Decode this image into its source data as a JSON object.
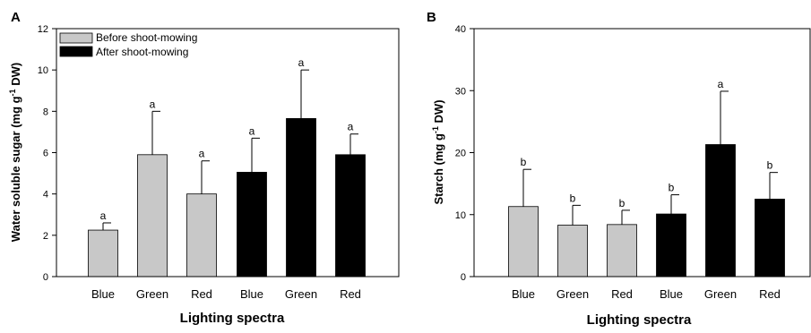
{
  "chart_data": [
    {
      "type": "bar",
      "panel_label": "A",
      "categories": [
        "Blue",
        "Green",
        "Red",
        "Blue",
        "Green",
        "Red"
      ],
      "series": [
        {
          "name": "Before shoot-mowing",
          "color": "#c8c8c8",
          "indices": [
            0,
            1,
            2
          ]
        },
        {
          "name": "After shoot-mowing",
          "color": "#000000",
          "indices": [
            3,
            4,
            5
          ]
        }
      ],
      "values": [
        2.25,
        5.9,
        4.0,
        5.05,
        7.65,
        5.9
      ],
      "errors": [
        0.35,
        2.1,
        1.6,
        1.65,
        2.35,
        1.0
      ],
      "significance": [
        "a",
        "a",
        "a",
        "a",
        "a",
        "a"
      ],
      "ylim": [
        0,
        12
      ],
      "yticks": [
        "0",
        "2",
        "4",
        "6",
        "8",
        "10",
        "12"
      ],
      "xlabel": "Lighting spectra",
      "ylabel": "Water soluble sugar (mg g",
      "ylabel_sup": "-1",
      "ylabel_end": " DW)",
      "legend": "top-left"
    },
    {
      "type": "bar",
      "panel_label": "B",
      "categories": [
        "Blue",
        "Green",
        "Red",
        "Blue",
        "Green",
        "Red"
      ],
      "series": [
        {
          "name": "Before shoot-mowing",
          "color": "#c8c8c8",
          "indices": [
            0,
            1,
            2
          ]
        },
        {
          "name": "After shoot-mowing",
          "color": "#000000",
          "indices": [
            3,
            4,
            5
          ]
        }
      ],
      "values": [
        11.3,
        8.3,
        8.4,
        10.1,
        21.3,
        12.5
      ],
      "errors": [
        6.0,
        3.2,
        2.3,
        3.1,
        8.6,
        4.3
      ],
      "significance": [
        "b",
        "b",
        "b",
        "b",
        "a",
        "b"
      ],
      "ylim": [
        0,
        40
      ],
      "yticks": [
        "0",
        "10",
        "20",
        "30",
        "40"
      ],
      "xlabel": "Lighting spectra",
      "ylabel": "Starch (mg g",
      "ylabel_sup": "-1",
      "ylabel_end": " DW)"
    }
  ]
}
